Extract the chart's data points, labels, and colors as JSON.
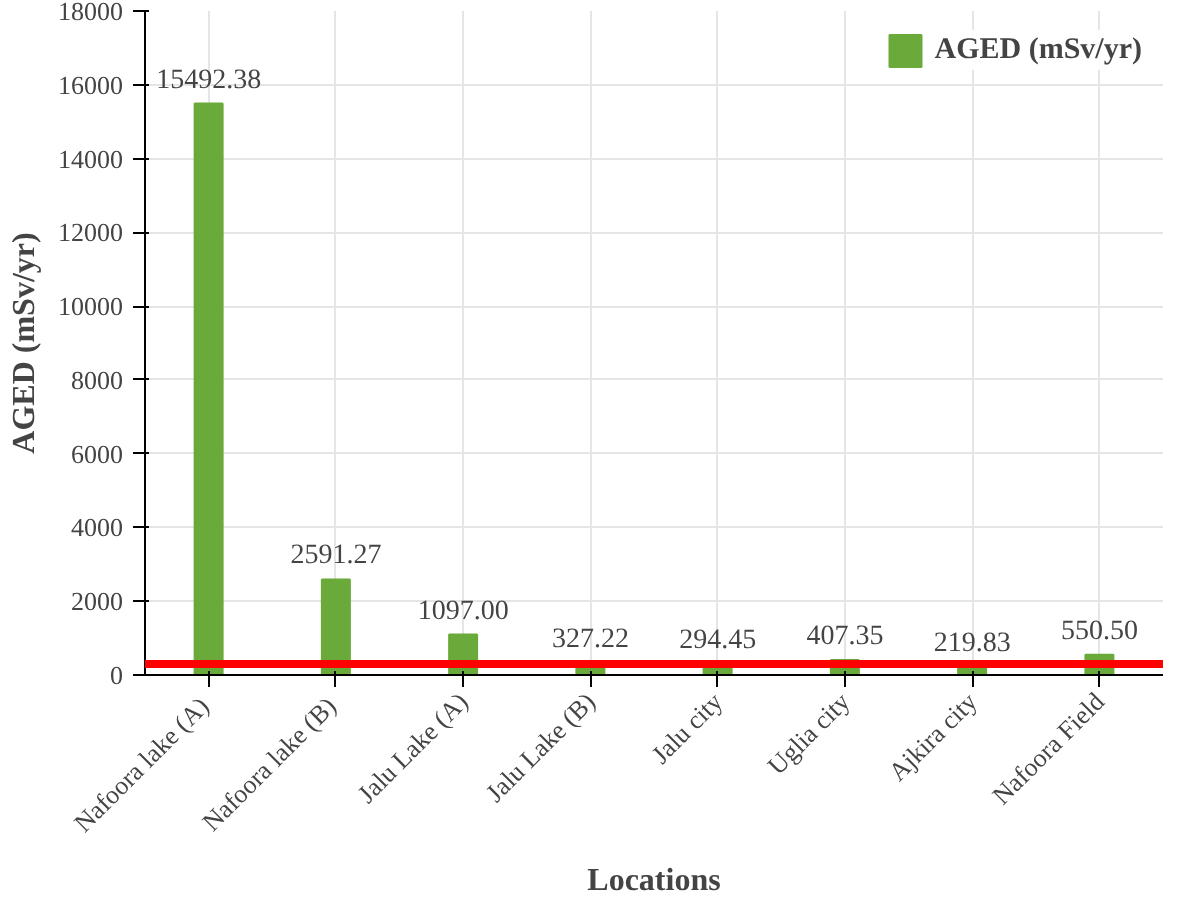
{
  "chart_data": {
    "type": "bar",
    "xlabel": "Locations",
    "ylabel": "AGED (mSv/yr)",
    "categories": [
      "Nafoora  lake (A)",
      "Nafoora  lake (B)",
      "Jalu Lake (A)",
      "Jalu Lake (B)",
      "Jalu city",
      "Uglia city",
      "Ajkira city",
      "Nafoora Field"
    ],
    "series": [
      {
        "name": "AGED (mSv/yr)",
        "color": "#6aaa3a",
        "values": [
          15492.38,
          2591.27,
          1097.0,
          327.22,
          294.45,
          407.35,
          219.83,
          550.5
        ],
        "value_labels": [
          "15492.38",
          "2591.27",
          "1097.00",
          "327.22",
          "294.45",
          "407.35",
          "219.83",
          "550.50"
        ]
      }
    ],
    "ylim": [
      0,
      18000
    ],
    "yticks": [
      0,
      2000,
      4000,
      6000,
      8000,
      10000,
      12000,
      14000,
      16000,
      18000
    ],
    "grid": true,
    "legend": "top right",
    "ref_lines": [
      {
        "axis": "y",
        "value": 300,
        "color": "#ff0000"
      }
    ]
  }
}
